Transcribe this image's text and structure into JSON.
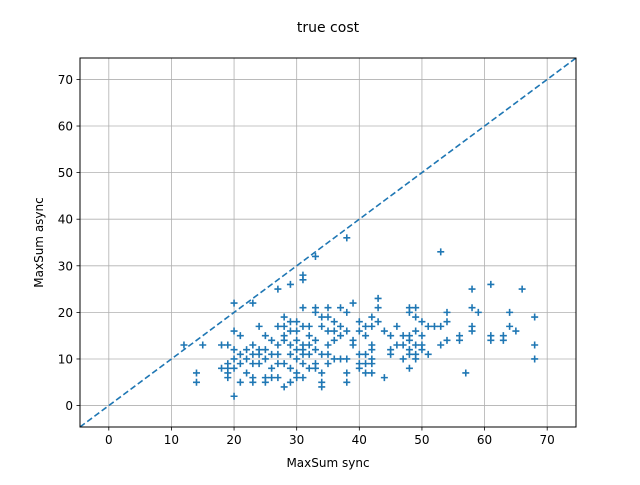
{
  "chart_data": {
    "type": "scatter",
    "title": "true cost",
    "xlabel": "MaxSum sync",
    "ylabel": "MaxSum async",
    "xlim": [
      -4.6,
      74.6
    ],
    "ylim": [
      -4.6,
      74.6
    ],
    "xticks": [
      0,
      10,
      20,
      30,
      40,
      50,
      60,
      70
    ],
    "yticks": [
      0,
      10,
      20,
      30,
      40,
      50,
      60,
      70
    ],
    "grid": true,
    "marker": "+",
    "color": "#1f77b4",
    "reference_line": {
      "style": "dashed",
      "from": [
        -4.6,
        -4.6
      ],
      "to": [
        74.6,
        74.6
      ]
    },
    "series": [
      {
        "points": [
          [
            12,
            13
          ],
          [
            14,
            7
          ],
          [
            14,
            5
          ],
          [
            15,
            13
          ],
          [
            18,
            13
          ],
          [
            18,
            8
          ],
          [
            19,
            13
          ],
          [
            19,
            9
          ],
          [
            19,
            8
          ],
          [
            19,
            7
          ],
          [
            19,
            6
          ],
          [
            20,
            22
          ],
          [
            20,
            16
          ],
          [
            20,
            12
          ],
          [
            20,
            10
          ],
          [
            20,
            8
          ],
          [
            20,
            2
          ],
          [
            21,
            15
          ],
          [
            21,
            11
          ],
          [
            21,
            9
          ],
          [
            21,
            5
          ],
          [
            22,
            12
          ],
          [
            22,
            10
          ],
          [
            22,
            7
          ],
          [
            23,
            22
          ],
          [
            23,
            13
          ],
          [
            23,
            11
          ],
          [
            23,
            9
          ],
          [
            23,
            6
          ],
          [
            23,
            5
          ],
          [
            24,
            17
          ],
          [
            24,
            12
          ],
          [
            24,
            11
          ],
          [
            24,
            9
          ],
          [
            25,
            15
          ],
          [
            25,
            12
          ],
          [
            25,
            10
          ],
          [
            25,
            6
          ],
          [
            25,
            5
          ],
          [
            26,
            14
          ],
          [
            26,
            11
          ],
          [
            26,
            8
          ],
          [
            26,
            6
          ],
          [
            27,
            25
          ],
          [
            27,
            17
          ],
          [
            27,
            13
          ],
          [
            27,
            11
          ],
          [
            27,
            9
          ],
          [
            27,
            6
          ],
          [
            28,
            19
          ],
          [
            28,
            17
          ],
          [
            28,
            15
          ],
          [
            28,
            14
          ],
          [
            28,
            9
          ],
          [
            28,
            4
          ],
          [
            29,
            26
          ],
          [
            29,
            18
          ],
          [
            29,
            16
          ],
          [
            29,
            13
          ],
          [
            29,
            11
          ],
          [
            29,
            8
          ],
          [
            29,
            5
          ],
          [
            30,
            18
          ],
          [
            30,
            16
          ],
          [
            30,
            14
          ],
          [
            30,
            12
          ],
          [
            30,
            10
          ],
          [
            30,
            7
          ],
          [
            30,
            6
          ],
          [
            31,
            28
          ],
          [
            31,
            27
          ],
          [
            31,
            21
          ],
          [
            31,
            17
          ],
          [
            31,
            13
          ],
          [
            31,
            12
          ],
          [
            31,
            11
          ],
          [
            31,
            9
          ],
          [
            31,
            6
          ],
          [
            32,
            17
          ],
          [
            32,
            15
          ],
          [
            32,
            13
          ],
          [
            32,
            11
          ],
          [
            32,
            8
          ],
          [
            33,
            32
          ],
          [
            33,
            21
          ],
          [
            33,
            20
          ],
          [
            33,
            14
          ],
          [
            33,
            12
          ],
          [
            33,
            9
          ],
          [
            33,
            8
          ],
          [
            34,
            19
          ],
          [
            34,
            17
          ],
          [
            34,
            11
          ],
          [
            34,
            7
          ],
          [
            34,
            5
          ],
          [
            34,
            4
          ],
          [
            35,
            21
          ],
          [
            35,
            19
          ],
          [
            35,
            16
          ],
          [
            35,
            13
          ],
          [
            35,
            11
          ],
          [
            35,
            9
          ],
          [
            36,
            18
          ],
          [
            36,
            16
          ],
          [
            36,
            14
          ],
          [
            36,
            10
          ],
          [
            37,
            21
          ],
          [
            37,
            17
          ],
          [
            37,
            15
          ],
          [
            37,
            10
          ],
          [
            38,
            36
          ],
          [
            38,
            20
          ],
          [
            38,
            16
          ],
          [
            38,
            10
          ],
          [
            38,
            7
          ],
          [
            38,
            5
          ],
          [
            39,
            22
          ],
          [
            39,
            14
          ],
          [
            39,
            13
          ],
          [
            40,
            18
          ],
          [
            40,
            16
          ],
          [
            40,
            11
          ],
          [
            40,
            9
          ],
          [
            40,
            8
          ],
          [
            41,
            17
          ],
          [
            41,
            15
          ],
          [
            41,
            11
          ],
          [
            41,
            9
          ],
          [
            41,
            7
          ],
          [
            42,
            19
          ],
          [
            42,
            17
          ],
          [
            42,
            13
          ],
          [
            42,
            12
          ],
          [
            42,
            10
          ],
          [
            42,
            9
          ],
          [
            42,
            7
          ],
          [
            43,
            23
          ],
          [
            43,
            21
          ],
          [
            43,
            18
          ],
          [
            44,
            16
          ],
          [
            44,
            6
          ],
          [
            45,
            15
          ],
          [
            45,
            12
          ],
          [
            45,
            11
          ],
          [
            46,
            17
          ],
          [
            46,
            13
          ],
          [
            47,
            15
          ],
          [
            47,
            13
          ],
          [
            47,
            10
          ],
          [
            48,
            21
          ],
          [
            48,
            20
          ],
          [
            48,
            15
          ],
          [
            48,
            14
          ],
          [
            48,
            12
          ],
          [
            48,
            11
          ],
          [
            48,
            8
          ],
          [
            49,
            21
          ],
          [
            49,
            19
          ],
          [
            49,
            16
          ],
          [
            49,
            13
          ],
          [
            49,
            11
          ],
          [
            49,
            10
          ],
          [
            50,
            18
          ],
          [
            50,
            15
          ],
          [
            50,
            13
          ],
          [
            50,
            12
          ],
          [
            51,
            17
          ],
          [
            51,
            11
          ],
          [
            52,
            17
          ],
          [
            53,
            33
          ],
          [
            53,
            17
          ],
          [
            53,
            13
          ],
          [
            54,
            20
          ],
          [
            54,
            18
          ],
          [
            54,
            14
          ],
          [
            56,
            15
          ],
          [
            56,
            14
          ],
          [
            57,
            7
          ],
          [
            58,
            25
          ],
          [
            58,
            21
          ],
          [
            58,
            17
          ],
          [
            58,
            16
          ],
          [
            59,
            20
          ],
          [
            61,
            26
          ],
          [
            61,
            15
          ],
          [
            61,
            14
          ],
          [
            63,
            15
          ],
          [
            63,
            14
          ],
          [
            64,
            20
          ],
          [
            64,
            17
          ],
          [
            65,
            16
          ],
          [
            66,
            25
          ],
          [
            68,
            19
          ],
          [
            68,
            13
          ],
          [
            68,
            10
          ]
        ]
      }
    ]
  }
}
